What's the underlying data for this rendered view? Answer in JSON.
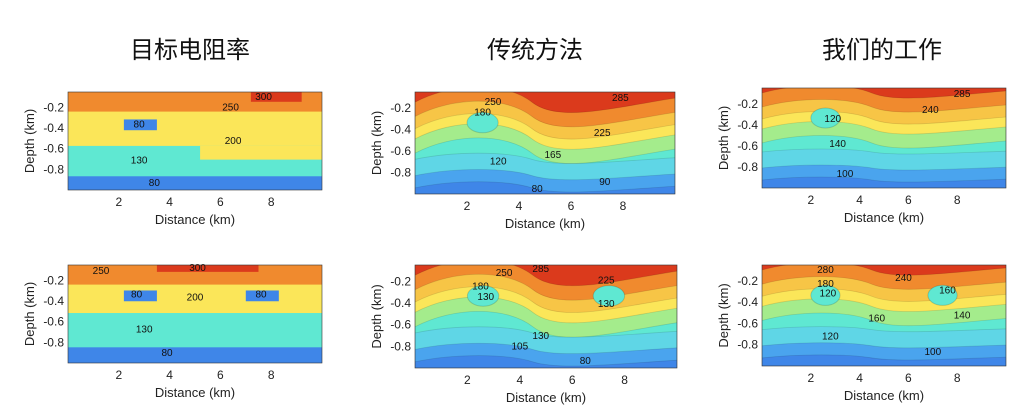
{
  "columns": [
    {
      "title": "目标电阻率"
    },
    {
      "title": "传统方法"
    },
    {
      "title": "我们的工作"
    }
  ],
  "colors": {
    "c80": "#3f86e8",
    "c100": "#4aa4ee",
    "c120": "#5fd6e6",
    "c130": "#5fe8d2",
    "c165": "#a4ec8c",
    "c200": "#fbe659",
    "c225": "#f7c546",
    "c250": "#f08a2e",
    "c300": "#db3a1c"
  },
  "chart_data": [
    {
      "id": "target-top",
      "type": "heatmap",
      "xlabel": "Distance (km)",
      "ylabel": "Depth (km)",
      "xticks": [
        "2",
        "4",
        "6",
        "8"
      ],
      "yticks": [
        "-0.2",
        "-0.4",
        "-0.6",
        "-0.8"
      ],
      "xlim": [
        0,
        10
      ],
      "ylim": [
        -1.0,
        -0.05
      ],
      "contour_labels": [
        "300",
        "250",
        "80",
        "200",
        "130",
        "80"
      ]
    },
    {
      "id": "traditional-top",
      "type": "heatmap",
      "xlabel": "Distance (km)",
      "ylabel": "Depth (km)",
      "xticks": [
        "2",
        "4",
        "6",
        "8"
      ],
      "yticks": [
        "-0.2",
        "-0.4",
        "-0.6",
        "-0.8"
      ],
      "xlim": [
        0,
        10
      ],
      "ylim": [
        -1.0,
        -0.05
      ],
      "contour_labels": [
        "250",
        "180",
        "285",
        "225",
        "165",
        "120",
        "90",
        "80"
      ]
    },
    {
      "id": "ours-top",
      "type": "heatmap",
      "xlabel": "Distance (km)",
      "ylabel": "Depth (km)",
      "xticks": [
        "2",
        "4",
        "6",
        "8"
      ],
      "yticks": [
        "-0.2",
        "-0.4",
        "-0.6",
        "-0.8"
      ],
      "xlim": [
        0,
        10
      ],
      "ylim": [
        -1.0,
        -0.05
      ],
      "contour_labels": [
        "285",
        "240",
        "120",
        "140",
        "100"
      ]
    },
    {
      "id": "target-bottom",
      "type": "heatmap",
      "xlabel": "Distance (km)",
      "ylabel": "Depth (km)",
      "xticks": [
        "2",
        "4",
        "6",
        "8"
      ],
      "yticks": [
        "-0.2",
        "-0.4",
        "-0.6",
        "-0.8"
      ],
      "xlim": [
        0,
        10
      ],
      "ylim": [
        -1.0,
        -0.05
      ],
      "contour_labels": [
        "250",
        "300",
        "80",
        "200",
        "80",
        "130",
        "80"
      ]
    },
    {
      "id": "traditional-bottom",
      "type": "heatmap",
      "xlabel": "Distance (km)",
      "ylabel": "Depth (km)",
      "xticks": [
        "2",
        "4",
        "6",
        "8"
      ],
      "yticks": [
        "-0.2",
        "-0.4",
        "-0.6",
        "-0.8"
      ],
      "xlim": [
        0,
        10
      ],
      "ylim": [
        -1.0,
        -0.05
      ],
      "contour_labels": [
        "250",
        "285",
        "225",
        "180",
        "130",
        "130",
        "130",
        "105",
        "80"
      ]
    },
    {
      "id": "ours-bottom",
      "type": "heatmap",
      "xlabel": "Distance (km)",
      "ylabel": "Depth (km)",
      "xticks": [
        "2",
        "4",
        "6",
        "8"
      ],
      "yticks": [
        "-0.2",
        "-0.4",
        "-0.6",
        "-0.8"
      ],
      "xlim": [
        0,
        10
      ],
      "ylim": [
        -1.0,
        -0.05
      ],
      "contour_labels": [
        "280",
        "240",
        "180",
        "120",
        "160",
        "160",
        "140",
        "120",
        "100"
      ]
    }
  ]
}
